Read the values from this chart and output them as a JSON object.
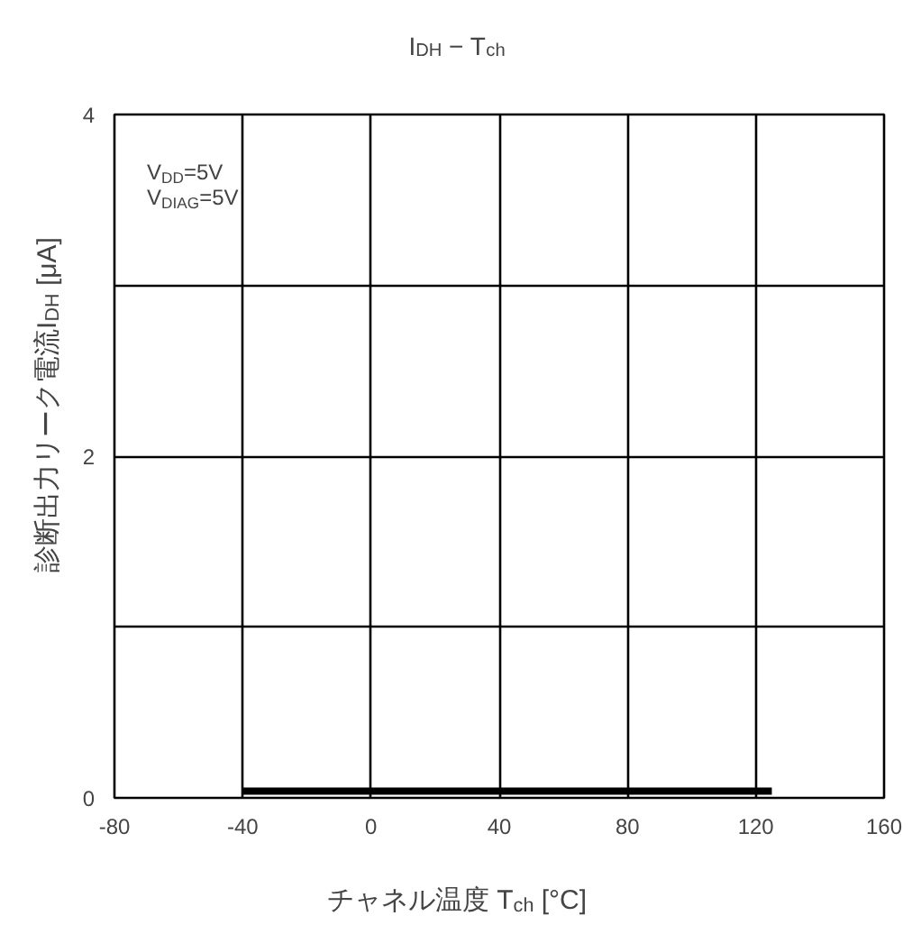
{
  "chart_data": {
    "type": "line",
    "title": "I$_{DH}$ − T$_{ch}$",
    "xlabel": "チャネル温度 T$_{ch}$ [°C]",
    "ylabel": "診断出力リーク電流I$_{DH}$ [μA]",
    "annotations": [
      "V$_{DD}$=5V",
      "V$_{DIAG}$=5V"
    ],
    "series": [
      {
        "x": [
          -40,
          125
        ],
        "values": [
          0.04,
          0.04
        ],
        "color": "#000000"
      }
    ],
    "xlim": [
      -80,
      160
    ],
    "xticks": [
      -80,
      -40,
      0,
      40,
      80,
      120,
      160
    ],
    "ylim": [
      0,
      4
    ],
    "yticks": [
      0,
      {
        "value": 1,
        "label": null
      },
      2,
      {
        "value": 3,
        "label": null
      },
      4
    ],
    "grid": true,
    "marker": "none",
    "line_style": "solid"
  }
}
